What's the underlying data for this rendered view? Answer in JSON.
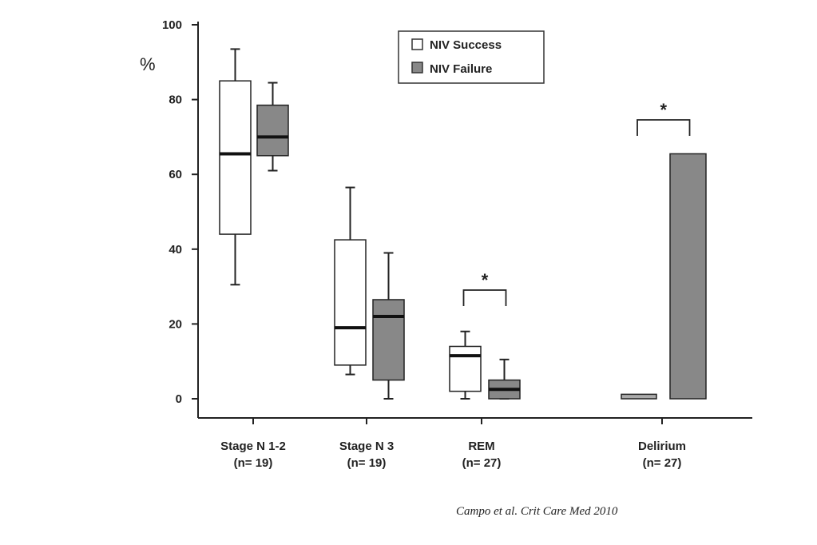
{
  "chart_data": {
    "type": "box",
    "ylabel": "%",
    "ylim": [
      0,
      100
    ],
    "yticks": [
      0,
      20,
      40,
      60,
      80,
      100
    ],
    "categories": [
      {
        "name": "Stage N 1-2",
        "n": "(n= 19)"
      },
      {
        "name": "Stage N 3",
        "n": "(n= 19)"
      },
      {
        "name": "REM",
        "n": "(n= 27)"
      },
      {
        "name": "Delirium",
        "n": "(n= 27)"
      }
    ],
    "series": [
      {
        "name": "NIV Success",
        "color": "#ffffff"
      },
      {
        "name": "NIV Failure",
        "color": "#888888"
      }
    ],
    "boxes": [
      {
        "category": "Stage N 1-2",
        "series": "NIV Success",
        "min": 30.5,
        "q1": 44,
        "median": 65.5,
        "q3": 85,
        "max": 93.5
      },
      {
        "category": "Stage N 1-2",
        "series": "NIV Failure",
        "min": 61,
        "q1": 65,
        "median": 70,
        "q3": 78.5,
        "max": 84.5
      },
      {
        "category": "Stage N 3",
        "series": "NIV Success",
        "min": 6.5,
        "q1": 9,
        "median": 19,
        "q3": 42.5,
        "max": 56.5
      },
      {
        "category": "Stage N 3",
        "series": "NIV Failure",
        "min": 0,
        "q1": 5,
        "median": 22,
        "q3": 26.5,
        "max": 39
      },
      {
        "category": "REM",
        "series": "NIV Success",
        "min": 0,
        "q1": 2,
        "median": 11.5,
        "q3": 14,
        "max": 18
      },
      {
        "category": "REM",
        "series": "NIV Failure",
        "min": 0,
        "q1": 0,
        "median": 2.5,
        "q3": 5,
        "max": 10.5
      }
    ],
    "bars": [
      {
        "category": "Delirium",
        "series": "NIV Success",
        "value": 1.2
      },
      {
        "category": "Delirium",
        "series": "NIV Failure",
        "value": 65.5
      }
    ],
    "annotations": [
      {
        "category": "REM",
        "text": "*"
      },
      {
        "category": "Delirium",
        "text": "*"
      }
    ],
    "legend": {
      "position": "top-right"
    },
    "grid": false
  },
  "citation": "Campo et al. Crit Care Med 2010"
}
